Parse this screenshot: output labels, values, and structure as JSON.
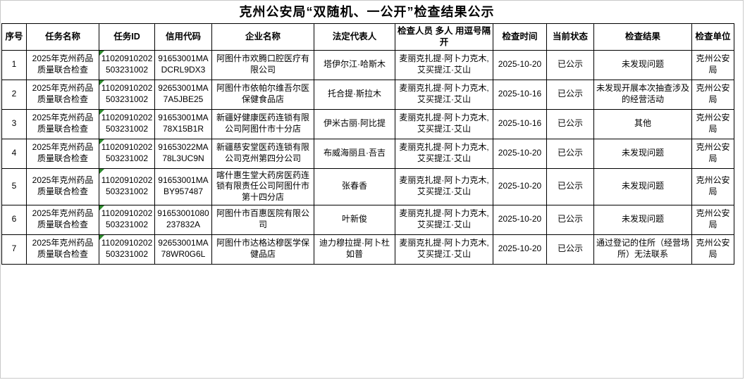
{
  "title": "克州公安局“双随机、一公开”检查结果公示",
  "marker": {
    "name": "number-as-text-marker",
    "color": "#2e8b2e"
  },
  "table": {
    "columns": [
      {
        "key": "seq",
        "label": "序号"
      },
      {
        "key": "task_name",
        "label": "任务名称"
      },
      {
        "key": "task_id",
        "label": "任务ID"
      },
      {
        "key": "credit_code",
        "label": "信用代码"
      },
      {
        "key": "company",
        "label": "企业名称"
      },
      {
        "key": "legal_rep",
        "label": "法定代表人"
      },
      {
        "key": "inspectors",
        "label": "检查人员 多人 用逗号隔开"
      },
      {
        "key": "check_date",
        "label": "检查时间"
      },
      {
        "key": "status",
        "label": "当前状态"
      },
      {
        "key": "result",
        "label": "检查结果"
      },
      {
        "key": "check_unit",
        "label": "检查单位"
      }
    ],
    "rows": [
      {
        "seq": "1",
        "task_name": "2025年克州药品质量联合检查",
        "task_id": "11020910202503231002",
        "credit_code": "91653001MADCRL9DX3",
        "company": "阿图什市欢腾口腔医疗有限公司",
        "legal_rep": "塔伊尔江·哈斯木",
        "inspectors": "麦丽克扎提·阿卜力克木,艾买提江·艾山",
        "check_date": "2025-10-20",
        "status": "已公示",
        "result": "未发现问题",
        "check_unit": "克州公安局"
      },
      {
        "seq": "2",
        "task_name": "2025年克州药品质量联合检查",
        "task_id": "11020910202503231002",
        "credit_code": "92653001MA7A5JBE25",
        "company": "阿图什市依帕尔维吾尔医保健食品店",
        "legal_rep": "托合提·斯拉木",
        "inspectors": "麦丽克扎提·阿卜力克木,艾买提江·艾山",
        "check_date": "2025-10-16",
        "status": "已公示",
        "result": "未发现开展本次抽查涉及的经营活动",
        "check_unit": "克州公安局"
      },
      {
        "seq": "3",
        "task_name": "2025年克州药品质量联合检查",
        "task_id": "11020910202503231002",
        "credit_code": "91653001MA78X15B1R",
        "company": "新疆好健康医药连锁有限公司阿图什市十分店",
        "legal_rep": "伊米古丽·阿比提",
        "inspectors": "麦丽克扎提·阿卜力克木,艾买提江·艾山",
        "check_date": "2025-10-16",
        "status": "已公示",
        "result": "其他",
        "check_unit": "克州公安局"
      },
      {
        "seq": "4",
        "task_name": "2025年克州药品质量联合检查",
        "task_id": "11020910202503231002",
        "credit_code": "91653022MA78L3UC9N",
        "company": "新疆慈安堂医药连锁有限公司克州第四分公司",
        "legal_rep": "布威海丽且·吾吉",
        "inspectors": "麦丽克扎提·阿卜力克木,艾买提江·艾山",
        "check_date": "2025-10-20",
        "status": "已公示",
        "result": "未发现问题",
        "check_unit": "克州公安局"
      },
      {
        "seq": "5",
        "task_name": "2025年克州药品质量联合检查",
        "task_id": "11020910202503231002",
        "credit_code": "91653001MABY957487",
        "company": "喀什惠生堂大药房医药连锁有限责任公司阿图什市第十四分店",
        "legal_rep": "张春香",
        "inspectors": "麦丽克扎提·阿卜力克木,艾买提江·艾山",
        "check_date": "2025-10-20",
        "status": "已公示",
        "result": "未发现问题",
        "check_unit": "克州公安局"
      },
      {
        "seq": "6",
        "task_name": "2025年克州药品质量联合检查",
        "task_id": "11020910202503231002",
        "credit_code": "91653001080237832A",
        "company": "阿图什市百惠医院有限公司",
        "legal_rep": "叶新俊",
        "inspectors": "麦丽克扎提·阿卜力克木,艾买提江·艾山",
        "check_date": "2025-10-20",
        "status": "已公示",
        "result": "未发现问题",
        "check_unit": "克州公安局"
      },
      {
        "seq": "7",
        "task_name": "2025年克州药品质量联合检查",
        "task_id": "11020910202503231002",
        "credit_code": "92653001MA78WR0G6L",
        "company": "阿图什市达格达穆医学保健品店",
        "legal_rep": "迪力穆拉提·阿卜杜如普",
        "inspectors": "麦丽克扎提·阿卜力克木,艾买提江·艾山",
        "check_date": "2025-10-20",
        "status": "已公示",
        "result": "通过登记的住所（经营场所）无法联系",
        "check_unit": "克州公安局"
      }
    ]
  }
}
